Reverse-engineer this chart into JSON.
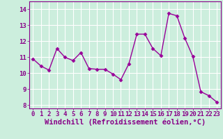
{
  "x": [
    0,
    1,
    2,
    3,
    4,
    5,
    6,
    7,
    8,
    9,
    10,
    11,
    12,
    13,
    14,
    15,
    16,
    17,
    18,
    19,
    20,
    21,
    22,
    23
  ],
  "y": [
    10.9,
    10.45,
    10.2,
    11.55,
    11.0,
    10.8,
    11.3,
    10.3,
    10.25,
    10.25,
    9.95,
    9.6,
    10.6,
    12.45,
    12.45,
    11.55,
    11.1,
    13.75,
    13.6,
    12.2,
    11.05,
    8.85,
    8.6,
    8.2
  ],
  "line_color": "#990099",
  "marker": "D",
  "marker_size": 2.5,
  "bg_color": "#cceedd",
  "grid_color": "#ffffff",
  "xlabel": "Windchill (Refroidissement éolien,°C)",
  "xlabel_fontsize": 7.5,
  "tick_fontsize": 6.5,
  "ylim": [
    7.8,
    14.5
  ],
  "yticks": [
    8,
    9,
    10,
    11,
    12,
    13,
    14
  ],
  "xlim": [
    -0.5,
    23.5
  ],
  "xticks": [
    0,
    1,
    2,
    3,
    4,
    5,
    6,
    7,
    8,
    9,
    10,
    11,
    12,
    13,
    14,
    15,
    16,
    17,
    18,
    19,
    20,
    21,
    22,
    23
  ]
}
